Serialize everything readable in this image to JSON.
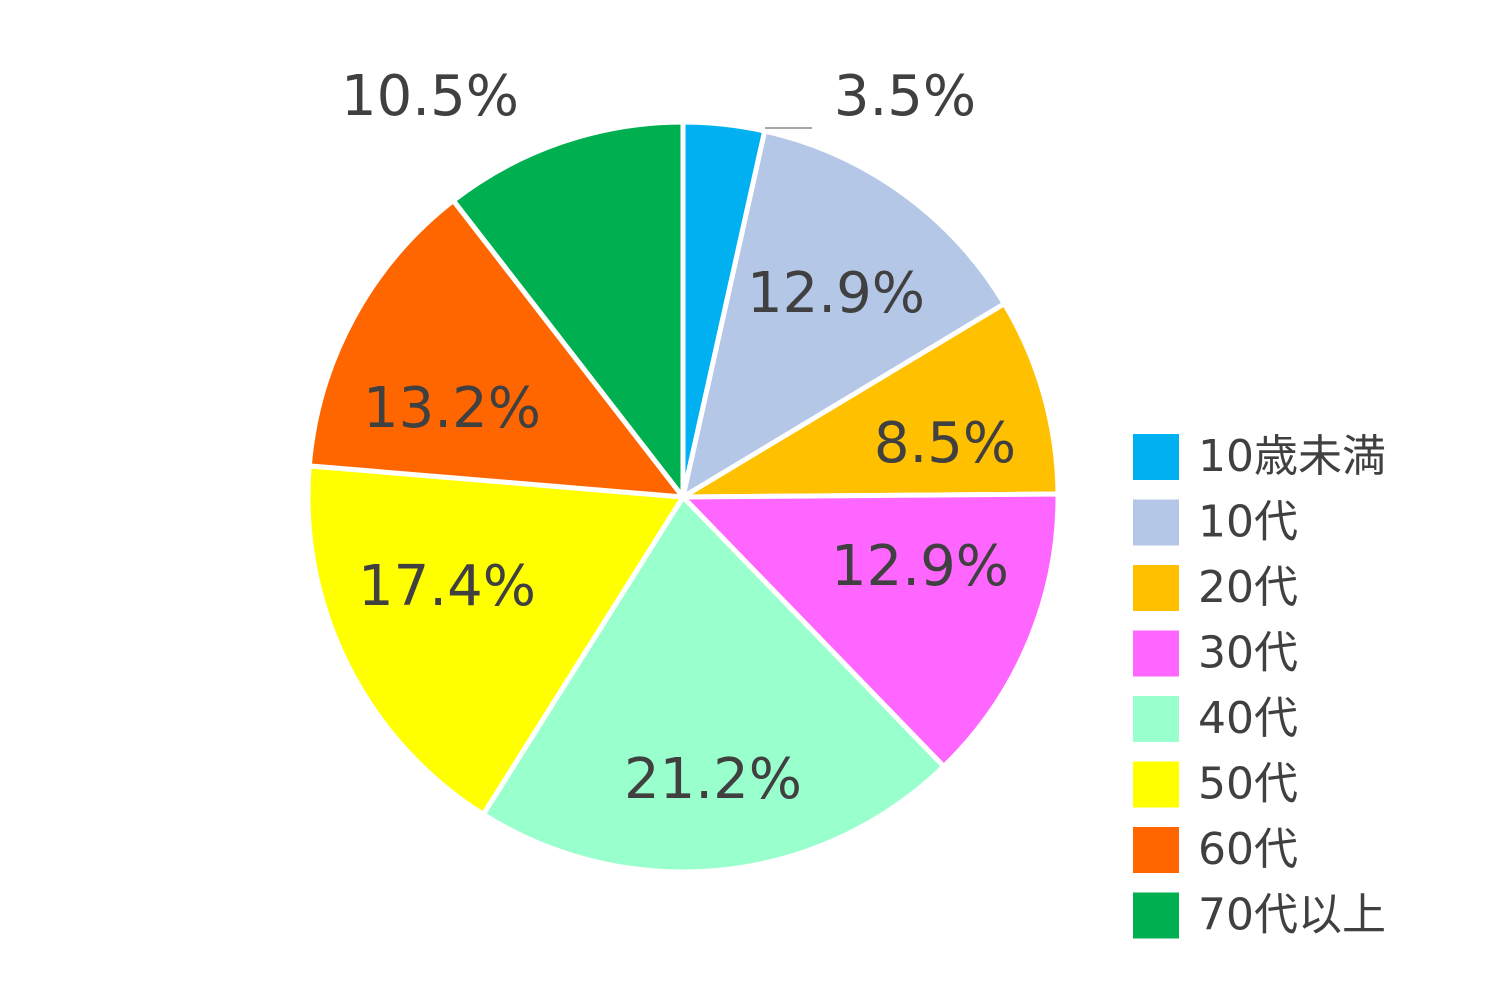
{
  "chart_data": {
    "type": "pie",
    "categories": [
      "10歳未満",
      "10代",
      "20代",
      "30代",
      "40代",
      "50代",
      "60代",
      "70代以上"
    ],
    "values": [
      3.5,
      12.9,
      8.5,
      12.9,
      21.2,
      17.4,
      13.2,
      10.5
    ],
    "value_labels": [
      "3.5%",
      "12.9%",
      "8.5%",
      "12.9%",
      "21.2%",
      "17.4%",
      "13.2%",
      "10.5%"
    ],
    "colors": [
      "#00b0f0",
      "#b4c7e7",
      "#ffc000",
      "#ff66ff",
      "#99ffcc",
      "#ffff00",
      "#ff6600",
      "#00b050"
    ],
    "legend": "right"
  }
}
